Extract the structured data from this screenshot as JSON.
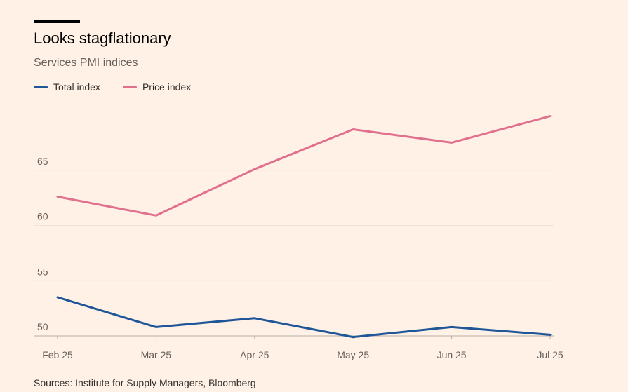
{
  "header": {
    "title": "Looks stagflationary",
    "subtitle": "Services PMI indices"
  },
  "footer": {
    "source": "Sources: Institute for Supply Managers, Bloomberg"
  },
  "colors": {
    "background": "#FFF1E5",
    "total": "#1E5698",
    "price": "#E0708E",
    "gridline": "#F2E2D3",
    "title_bar": "#000000"
  },
  "chart_data": {
    "type": "line",
    "title": "Looks stagflationary",
    "subtitle": "Services PMI indices",
    "categories": [
      "Feb 25",
      "Mar 25",
      "Apr 25",
      "May 25",
      "Jun 25",
      "Jul 25"
    ],
    "series": [
      {
        "name": "Total index",
        "values": [
          53.5,
          50.8,
          51.6,
          49.9,
          50.8,
          50.1
        ]
      },
      {
        "name": "Price index",
        "values": [
          62.6,
          60.9,
          65.1,
          68.7,
          67.5,
          69.9
        ]
      }
    ],
    "yticks": [
      50,
      55,
      60,
      65
    ],
    "ylim": [
      50,
      70
    ],
    "grid": true,
    "legend_position": "top-left"
  }
}
